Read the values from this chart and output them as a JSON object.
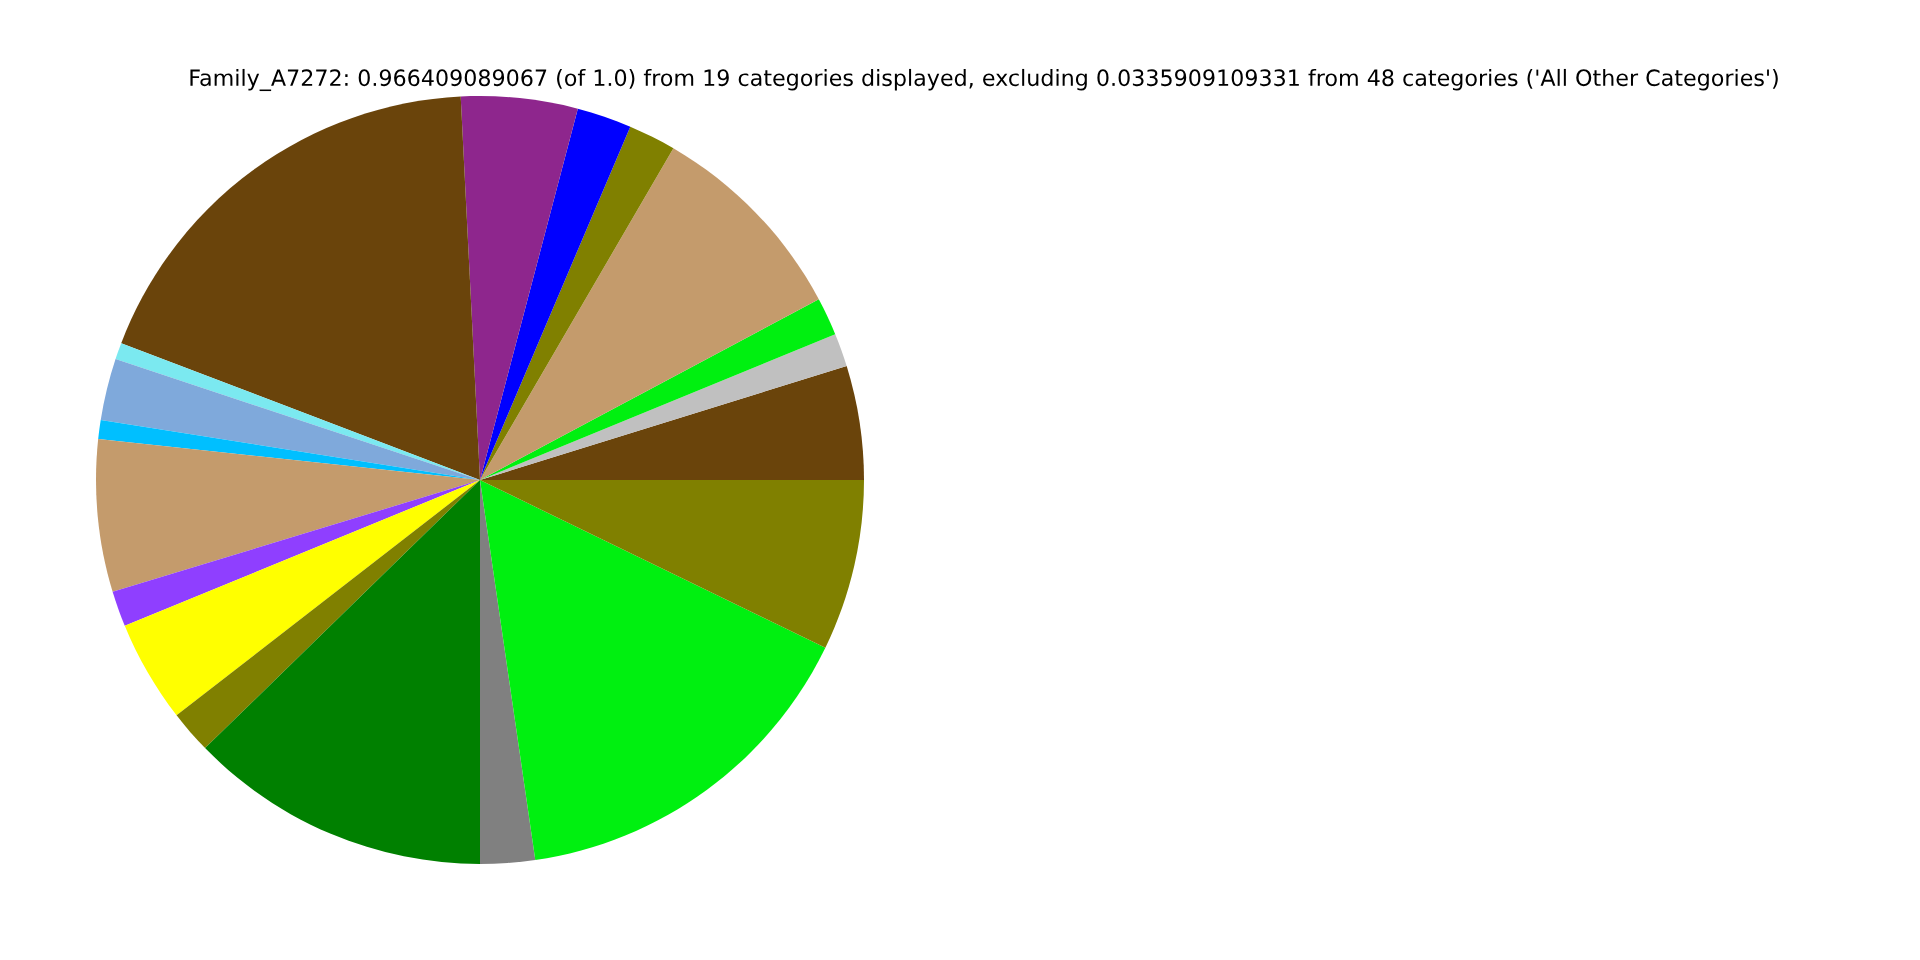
{
  "chart_data": {
    "type": "pie",
    "title": "Family_A7272: 0.966409089067 (of 1.0) from 19 categories displayed, excluding 0.0335909109331 from 48 categories ('All Other Categories')",
    "categories": [
      null,
      null,
      null,
      null,
      null,
      null,
      null,
      null,
      null,
      null,
      null,
      null,
      null,
      null,
      null,
      null,
      null,
      null,
      null
    ],
    "values": [
      4.8,
      1.4,
      1.6,
      8.8,
      2.0,
      2.3,
      4.9,
      18.4,
      0.7,
      2.6,
      0.8,
      6.4,
      1.5,
      4.3,
      1.8,
      12.7,
      2.3,
      15.5,
      7.2
    ],
    "colors": [
      "#6a440b",
      "#c0c0c0",
      "#00f010",
      "#c49b6c",
      "#808000",
      "#0000ff",
      "#8e268d",
      "#6a440b",
      "#7be9f0",
      "#7fa9db",
      "#00bfff",
      "#c49b6c",
      "#8f3fff",
      "#ffff00",
      "#808000",
      "#008000",
      "#808080",
      "#00f010",
      "#808000"
    ]
  }
}
